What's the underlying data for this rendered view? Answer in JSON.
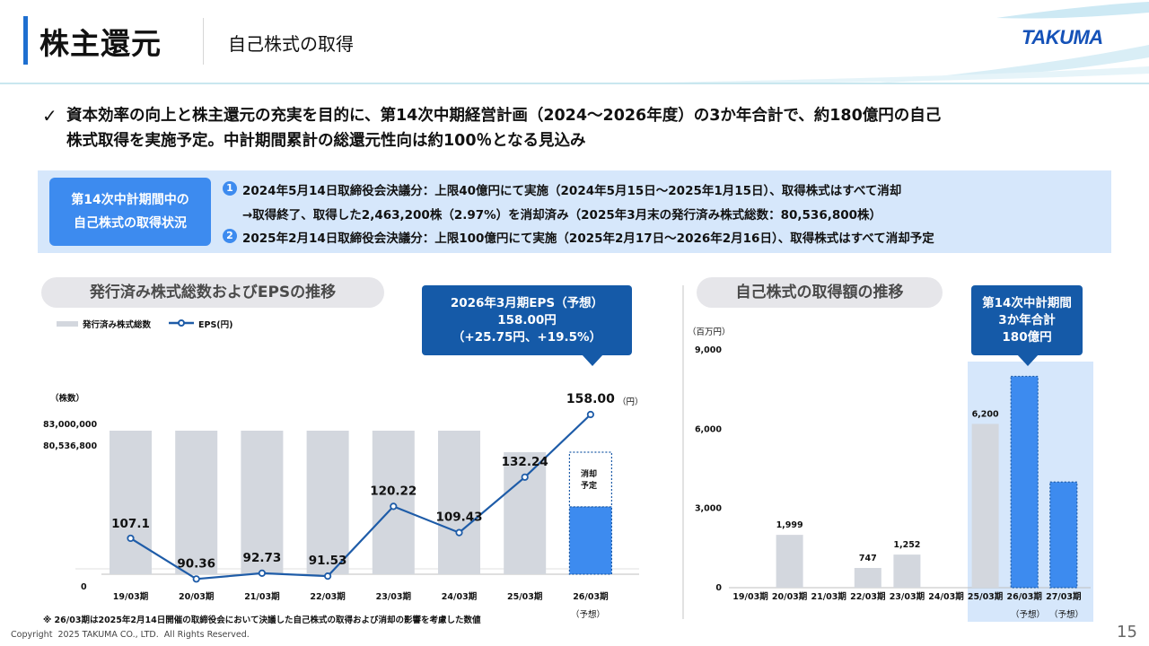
{
  "header": {
    "title": "株主還元",
    "subtitle": "自己株式の取得",
    "logo": "TAKUMA"
  },
  "lead": {
    "check_icon": "check-icon",
    "line1": "資本効率の向上と株主還元の充実を目的に、第14次中期経営計画（2024～2026年度）の3か年合計で、約180億円の自己",
    "line2": "株式取得を実施予定。中計期間累計の総還元性向は約100％となる見込み"
  },
  "status": {
    "label_line1": "第14次中計期間中の",
    "label_line2": "自己株式の取得状況",
    "item1_num": "1",
    "item1": "2024年5月14日取締役会決議分：上限40億円にて実施（2024年5月15日～2025年1月15日）、取得株式はすべて消却",
    "item1_sub": "→取得終了、取得した2,463,200株（2.97%）を消却済み（2025年3月末の発行済み株式総数：80,536,800株）",
    "item2_num": "2",
    "item2": "2025年2月14日取締役会決議分：上限100億円にて実施（2025年2月17日～2026年2月16日）、取得株式はすべて消却予定"
  },
  "left_panel": {
    "title": "発行済み株式総数およびEPSの推移",
    "callout_line1": "2026年3月期EPS（予想）",
    "callout_line2": "158.00円",
    "callout_line3": "（+25.75円、+19.5%）",
    "legend_shares": "発行済み株式総数",
    "legend_eps": "EPS(円)",
    "unit_shares": "（株数）",
    "unit_eps": "（円）",
    "tick_top": "83,000,000",
    "tick_mid": "80,536,800",
    "tick_zero": "0",
    "planned_label_line1": "消却",
    "planned_label_line2": "予定",
    "forecast_label": "（予想）",
    "note": "※ 26/03期は2025年2月14日開催の取締役会において決議した自己株式の取得および消却の影響を考慮した数値"
  },
  "right_panel": {
    "title": "自己株式の取得額の推移",
    "callout_line1": "第14次中計期間",
    "callout_line2": "3か年合計",
    "callout_line3": "180億円",
    "unit": "（百万円）",
    "forecast_label": "（予想）"
  },
  "chart_data": [
    {
      "type": "bar",
      "title": "発行済み株式総数およびEPSの推移",
      "categories": [
        "19/03期",
        "20/03期",
        "21/03期",
        "22/03期",
        "23/03期",
        "24/03期",
        "25/03期",
        "26/03期"
      ],
      "series": [
        {
          "name": "発行済み株式総数",
          "type": "bar",
          "values": [
            83000000,
            83000000,
            83000000,
            83000000,
            83000000,
            83000000,
            80536800,
            80536800
          ],
          "planned_retirement_2603": "消却予定"
        },
        {
          "name": "EPS(円)",
          "type": "line",
          "values": [
            107.1,
            90.36,
            92.73,
            91.53,
            120.22,
            109.43,
            132.24,
            158.0
          ],
          "labels": [
            "107.1",
            "90.36",
            "92.73",
            "91.53",
            "120.22",
            "109.43",
            "132.24",
            "158.00"
          ]
        }
      ],
      "y_ticks": [
        "83,000,000",
        "80,536,800",
        "0"
      ],
      "colors": {
        "bar": "#d3d7de",
        "forecast_bar": "#3d8bef",
        "line": "#1e5ca8"
      }
    },
    {
      "type": "bar",
      "title": "自己株式の取得額の推移",
      "categories": [
        "19/03期",
        "20/03期",
        "21/03期",
        "22/03期",
        "23/03期",
        "24/03期",
        "25/03期",
        "26/03期",
        "27/03期"
      ],
      "values": [
        0,
        1999,
        0,
        747,
        1252,
        0,
        6200,
        8000,
        4000
      ],
      "labels": [
        "",
        "1,999",
        "",
        "747",
        "1,252",
        "",
        "6,200",
        "",
        ""
      ],
      "ylim": [
        0,
        9000
      ],
      "y_ticks": [
        "9,000",
        "6,000",
        "3,000",
        "0"
      ],
      "forecast": [
        false,
        false,
        false,
        false,
        false,
        false,
        false,
        true,
        true
      ],
      "colors": {
        "bar": "#d3d7de",
        "forecast_bar": "#3d8bef",
        "highlight_bg": "#d6e7fb"
      }
    }
  ]
}
